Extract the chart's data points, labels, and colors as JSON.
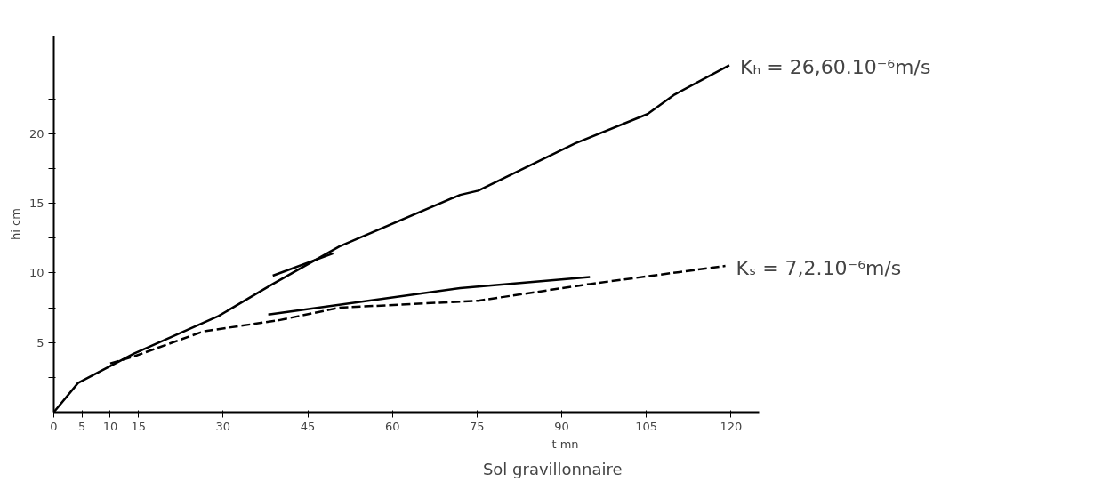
{
  "chart_data": {
    "type": "line",
    "title": "Sol      gravillonnaire",
    "xlabel": "t mn",
    "ylabel": "hi cm",
    "xlim": [
      0,
      125
    ],
    "ylim": [
      0,
      27
    ],
    "xticks": [
      0,
      5,
      10,
      15,
      30,
      45,
      60,
      75,
      90,
      105,
      120
    ],
    "yticks": [
      {
        "value": 2.5,
        "label": null
      },
      5,
      {
        "value": 7.5,
        "label": null
      },
      10,
      {
        "value": 12.5,
        "label": null
      },
      15,
      {
        "value": 17.5,
        "label": null
      },
      20,
      {
        "value": 22.5,
        "label": null
      }
    ],
    "grid": false,
    "series": [
      {
        "color": "#000000",
        "line_style": "solid",
        "x": [
          0,
          4.3,
          14.2,
          29.2,
          38.8,
          50.6,
          72,
          75.2,
          92.4,
          105.2,
          110,
          119.7
        ],
        "values": [
          0,
          2.1,
          4.2,
          6.9,
          9.2,
          11.9,
          15.6,
          15.9,
          19.3,
          21.4,
          22.8,
          24.9
        ]
      },
      {
        "color": "#000000",
        "line_style": "solid",
        "x": [
          38.8,
          49.5
        ],
        "values": [
          9.8,
          11.4
        ]
      },
      {
        "color": "#000000",
        "line_style": "solid",
        "x": [
          38,
          72,
          95
        ],
        "values": [
          7.0,
          8.9,
          9.7
        ]
      },
      {
        "color": "#000000",
        "line_style": "dashed",
        "x": [
          10,
          14.2,
          26.5,
          39.9,
          50.6,
          75.2,
          95,
          119
        ],
        "values": [
          3.5,
          4.0,
          5.8,
          6.6,
          7.5,
          8.0,
          9.2,
          10.5
        ]
      }
    ],
    "annotations": [
      {
        "text": "Kₕ = 26,60.10⁻⁶m/s",
        "x": 119.7,
        "y": 24.9
      },
      {
        "text": "Kₛ = 7,2.10⁻⁶m/s",
        "x": 119,
        "y": 10.5
      }
    ]
  }
}
